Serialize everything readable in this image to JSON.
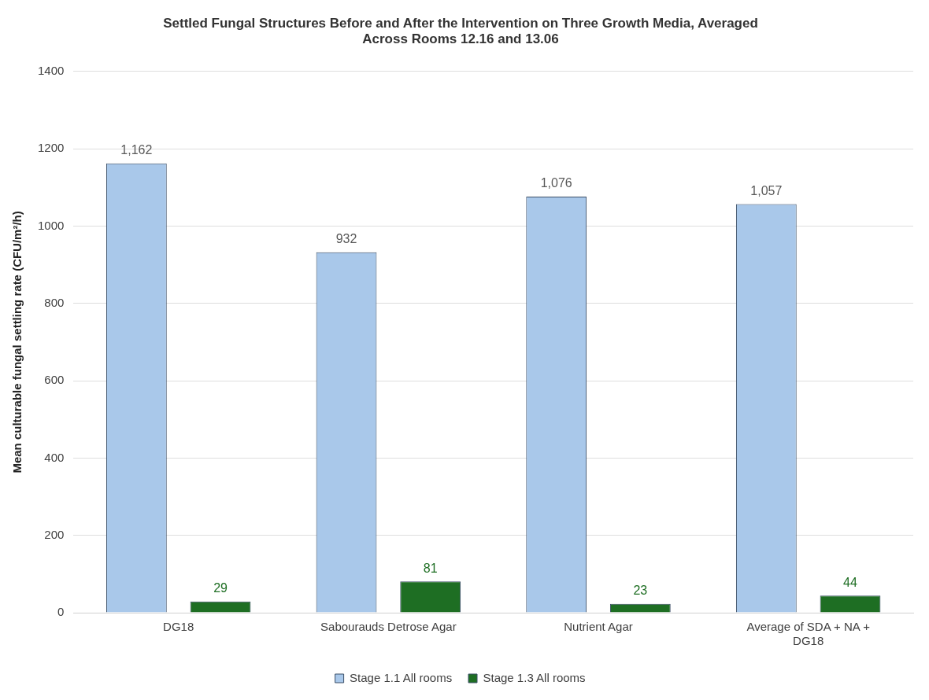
{
  "chart_data": {
    "type": "bar",
    "title": "Settled Fungal Structures Before and After the Intervention on Three Growth Media, Averaged Across Rooms 12.16 and 13.06",
    "ylabel": "Mean culturable fungal settling rate (CFU/m²/h)",
    "categories": [
      "DG18",
      "Sabourauds Detrose Agar",
      "Nutrient Agar",
      "Average of SDA + NA + DG18"
    ],
    "series": [
      {
        "name": "Stage 1.1 All rooms",
        "color": "#a9c8ea",
        "values": [
          1162,
          932,
          1076,
          1057
        ],
        "value_labels": [
          "1,162",
          "932",
          "1,076",
          "1,057"
        ]
      },
      {
        "name": "Stage 1.3 All rooms",
        "color": "#1e6e23",
        "values": [
          29,
          81,
          23,
          44
        ],
        "value_labels": [
          "29",
          "81",
          "23",
          "44"
        ]
      }
    ],
    "ylim": [
      0,
      1400
    ],
    "yticks": [
      0,
      200,
      400,
      600,
      800,
      1000,
      1200,
      1400
    ],
    "grid": "y",
    "legend": "bottom"
  }
}
